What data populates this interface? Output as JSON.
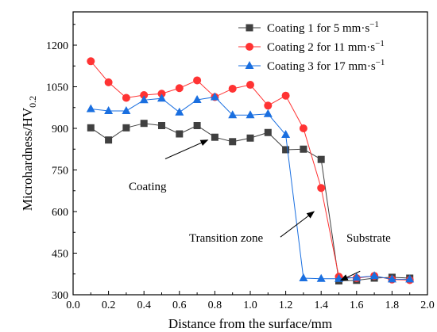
{
  "chart_data": {
    "type": "line",
    "title": "",
    "xlabel": "Distance from the surface/mm",
    "ylabel": "Microhardness/HV",
    "ylabel_sub": "0.2",
    "xlim": [
      0.0,
      2.0
    ],
    "ylim": [
      300,
      1320
    ],
    "xticks": [
      0.0,
      0.2,
      0.4,
      0.6,
      0.8,
      1.0,
      1.2,
      1.4,
      1.6,
      1.8,
      2.0
    ],
    "xtick_labels": [
      "0.0",
      "0.2",
      "0.4",
      "0.6",
      "0.8",
      "1.0",
      "1.2",
      "1.4",
      "1.6",
      "1.8",
      "2.0"
    ],
    "yticks": [
      300,
      450,
      600,
      750,
      900,
      1050,
      1200
    ],
    "ytick_labels": [
      "300",
      "450",
      "600",
      "750",
      "900",
      "1050",
      "1200"
    ],
    "grid": false,
    "legend_position": "top-right",
    "x": [
      0.1,
      0.2,
      0.3,
      0.4,
      0.5,
      0.6,
      0.7,
      0.8,
      0.9,
      1.0,
      1.1,
      1.2,
      1.3,
      1.4,
      1.5,
      1.6,
      1.7,
      1.8,
      1.9
    ],
    "series": [
      {
        "name": "Coating 1 for 5 mm·s",
        "name_sup": "−1",
        "color": "#404040",
        "marker": "square",
        "values": [
          902,
          858,
          902,
          918,
          910,
          880,
          910,
          868,
          852,
          865,
          885,
          823,
          825,
          788,
          350,
          352,
          360,
          363,
          360
        ]
      },
      {
        "name": "Coating 2 for 11 mm·s",
        "name_sup": "−1",
        "color": "#ff3333",
        "marker": "circle",
        "values": [
          1142,
          1066,
          1010,
          1020,
          1025,
          1045,
          1073,
          1013,
          1043,
          1057,
          982,
          1018,
          900,
          685,
          365,
          360,
          368,
          355,
          353
        ]
      },
      {
        "name": "Coating 3 for 17 mm·s",
        "name_sup": "−1",
        "color": "#1a6fe0",
        "marker": "triangle",
        "values": [
          970,
          963,
          963,
          1002,
          1008,
          958,
          1003,
          1013,
          948,
          948,
          952,
          877,
          360,
          358,
          358,
          362,
          368,
          356,
          356
        ]
      }
    ],
    "annotations": [
      {
        "text": "Coating",
        "arrow_from": [
          0.52,
          790
        ],
        "arrow_to": [
          0.76,
          858
        ]
      },
      {
        "text": "Transition zone",
        "arrow_from": [
          1.17,
          508
        ],
        "arrow_to": [
          1.36,
          600
        ]
      },
      {
        "text": "Substrate",
        "arrow_from": [
          1.62,
          385
        ],
        "arrow_to": [
          1.51,
          352
        ]
      }
    ]
  }
}
